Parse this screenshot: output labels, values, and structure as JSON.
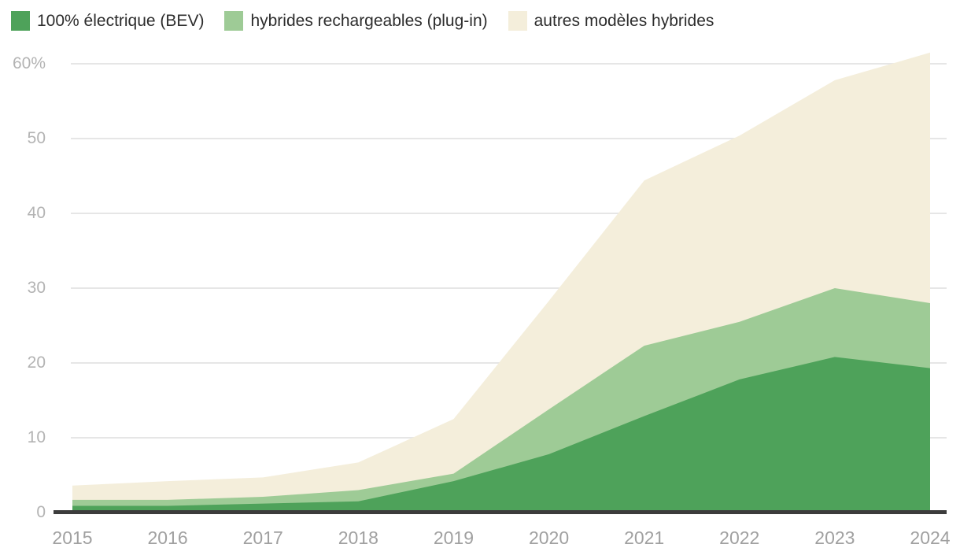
{
  "chart_data": {
    "type": "area",
    "stacked": true,
    "title": "",
    "xlabel": "",
    "ylabel": "",
    "x_categories": [
      "2015",
      "2016",
      "2017",
      "2018",
      "2019",
      "2020",
      "2021",
      "2022",
      "2023",
      "2024"
    ],
    "series": [
      {
        "name": "100% électrique (BEV)",
        "color": "#4EA25A",
        "values": [
          0.9,
          0.9,
          1.2,
          1.5,
          4.2,
          7.8,
          12.9,
          17.8,
          20.8,
          19.3
        ]
      },
      {
        "name": "hybrides rechargeables (plug-in)",
        "color": "#9ECB96",
        "values": [
          0.8,
          0.8,
          0.9,
          1.5,
          1.0,
          6.0,
          9.4,
          7.7,
          9.2,
          8.7
        ]
      },
      {
        "name": "autres modèles hybrides",
        "color": "#F4EEDB",
        "values": [
          1.9,
          2.5,
          2.6,
          3.7,
          7.3,
          14.5,
          22.1,
          24.9,
          27.8,
          33.5
        ]
      }
    ],
    "cumulative_tops": {
      "bev": [
        0.9,
        0.9,
        1.2,
        1.5,
        4.2,
        7.8,
        12.9,
        17.8,
        20.8,
        19.3
      ],
      "bev_plus_plugin": [
        1.7,
        1.7,
        2.1,
        3.0,
        5.2,
        13.8,
        22.3,
        25.5,
        30.0,
        28.0
      ],
      "total": [
        3.6,
        4.2,
        4.7,
        6.7,
        12.5,
        28.3,
        44.4,
        50.4,
        57.8,
        61.5
      ]
    },
    "ylim": [
      0,
      62
    ],
    "yticks": [
      {
        "v": 0,
        "label": "0"
      },
      {
        "v": 10,
        "label": "10"
      },
      {
        "v": 20,
        "label": "20"
      },
      {
        "v": 30,
        "label": "30"
      },
      {
        "v": 40,
        "label": "40"
      },
      {
        "v": 50,
        "label": "50"
      },
      {
        "v": 60,
        "label": "60%"
      }
    ],
    "grid": "horizontal",
    "legend_position": "top-left"
  },
  "colors": {
    "background": "#FFFFFF",
    "bev_area": "#4EA25A",
    "plugin_area": "#9ECB96",
    "hybrid_area": "#F4EEDB",
    "gridline": "#E6E6E6",
    "axis_line": "#3C3C3C",
    "y_tick_text": "#B3B3B3",
    "x_tick_text": "#A0A0A0",
    "legend_text": "#2D2D2D"
  }
}
